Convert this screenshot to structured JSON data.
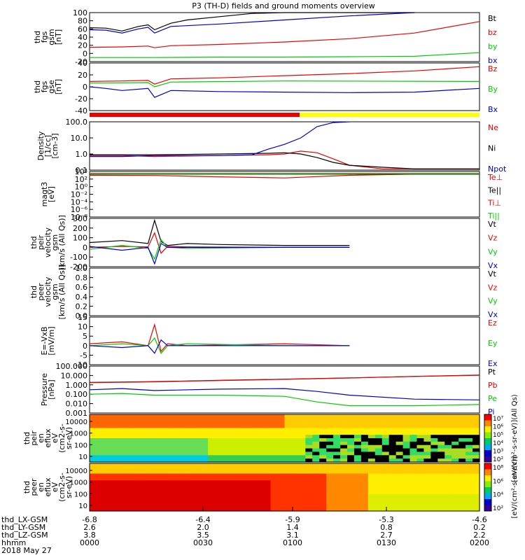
{
  "title": "P3 (TH-D) fields and ground moments overview",
  "date_label": "2018 May 27",
  "colors": {
    "black": "#000000",
    "red": "#ee0000",
    "green": "#00cc00",
    "blue": "#0000cc",
    "yellow": "#ffff00",
    "bar_red": "#ee0000"
  },
  "ephemeris": {
    "row_labels": [
      "thd_LX-GSM",
      "thd_LY-GSM",
      "thd_LZ-GSM",
      "hhmm"
    ],
    "x_ticks": [
      "-6.8",
      "-6.4",
      "-5.9",
      "-5.3",
      "-4.6"
    ],
    "columns": [
      [
        "2.6",
        "3.8",
        "0000"
      ],
      [
        "2.0",
        "3.5",
        "0030"
      ],
      [
        "1.4",
        "3.1",
        "0100"
      ],
      [
        "0.8",
        "2.7",
        "0130"
      ],
      [
        "0.2",
        "2.2",
        "0200"
      ]
    ]
  },
  "chart_data": [
    {
      "type": "line",
      "panel": "fgs_gsm",
      "ylabel": [
        "thd",
        "fgs",
        "gsm",
        "[nT]"
      ],
      "ylim": [
        -20,
        100
      ],
      "y_ticks": [
        "100",
        "80",
        "60",
        "40",
        "20",
        "0",
        "-20"
      ],
      "x_time": [
        "0000",
        "0030",
        "0100",
        "0130",
        "0200"
      ],
      "series": [
        {
          "name": "Bt",
          "color": "#000000",
          "x": [
            0,
            5,
            10,
            15,
            18,
            20,
            25,
            30,
            40,
            50,
            60,
            70,
            80,
            90,
            100
          ],
          "values": [
            63,
            62,
            55,
            66,
            70,
            58,
            74,
            82,
            90,
            98,
            102,
            105,
            108,
            110,
            112
          ]
        },
        {
          "name": "bz",
          "color": "#ee0000",
          "x": [
            0,
            10,
            18,
            20,
            25,
            40,
            60,
            80,
            100,
            120
          ],
          "values": [
            15,
            16,
            18,
            14,
            19,
            22,
            28,
            36,
            50,
            78
          ]
        },
        {
          "name": "by",
          "color": "#00cc00",
          "x": [
            0,
            20,
            40,
            60,
            80,
            100,
            120
          ],
          "values": [
            -10,
            -10,
            -9,
            -9,
            -8,
            -7,
            2
          ]
        },
        {
          "name": "bx",
          "color": "#0000cc",
          "x": [
            0,
            5,
            10,
            15,
            18,
            20,
            25,
            40,
            60,
            80,
            100
          ],
          "values": [
            58,
            57,
            50,
            60,
            64,
            50,
            66,
            72,
            82,
            92,
            100
          ]
        }
      ]
    },
    {
      "type": "line",
      "panel": "fgs_gse",
      "ylabel": [
        "thd",
        "fgs",
        "gse",
        "[nT]"
      ],
      "ylim": [
        -50,
        40
      ],
      "y_ticks": [
        "40",
        "20",
        "0",
        "-20",
        "-40"
      ],
      "series": [
        {
          "name": "Bz",
          "color": "#ee0000",
          "x": [
            0,
            10,
            18,
            20,
            25,
            40,
            60,
            80,
            100,
            120
          ],
          "values": [
            5,
            6,
            7,
            0,
            10,
            12,
            16,
            20,
            25,
            33
          ]
        },
        {
          "name": "By",
          "color": "#00cc00",
          "x": [
            0,
            18,
            20,
            25,
            60,
            120
          ],
          "values": [
            2,
            3,
            -5,
            4,
            6,
            5
          ]
        },
        {
          "name": "Bx",
          "color": "#0000cc",
          "x": [
            0,
            5,
            10,
            18,
            20,
            25,
            40,
            60,
            80,
            100,
            120
          ],
          "values": [
            -5,
            -8,
            -12,
            -8,
            -25,
            -12,
            -14,
            -15,
            -16,
            -15,
            -8
          ]
        }
      ]
    },
    {
      "type": "line",
      "panel": "density",
      "ylabel": [
        "Density",
        "[1/cc]",
        "[cm-3]"
      ],
      "ylim_log": [
        0.1,
        100
      ],
      "y_ticks": [
        "100.0",
        "10.0",
        "1.0",
        "0.1"
      ],
      "series": [
        {
          "name": "Ne",
          "color": "#ee0000",
          "x": [
            0,
            10,
            20,
            40,
            55,
            60,
            65,
            70,
            75,
            80,
            90,
            100,
            120
          ],
          "values": [
            0.8,
            0.8,
            0.7,
            0.8,
            0.9,
            1.0,
            1.5,
            1.2,
            0.5,
            0.2,
            0.12,
            0.12,
            0.12
          ]
        },
        {
          "name": "Ni",
          "color": "#000000",
          "x": [
            0,
            10,
            20,
            40,
            55,
            60,
            65,
            70,
            75,
            80,
            90,
            100,
            120
          ],
          "values": [
            0.9,
            0.9,
            0.9,
            1.0,
            1.1,
            1.2,
            1.0,
            0.6,
            0.3,
            0.2,
            0.15,
            0.12,
            0.12
          ]
        },
        {
          "name": "Npot",
          "color": "#0000cc",
          "x": [
            0,
            10,
            20,
            40,
            50,
            55,
            60,
            65,
            70,
            75,
            80
          ],
          "values": [
            0.7,
            0.7,
            0.8,
            0.8,
            0.9,
            2.0,
            4.0,
            10.0,
            50.0,
            90.0,
            120.0
          ]
        }
      ]
    },
    {
      "type": "line",
      "panel": "temperature",
      "ylabel": [
        "magt3",
        "[eV]"
      ],
      "ylim_log": [
        1e-08,
        10000.0
      ],
      "y_ticks": [
        "10⁴",
        "10²",
        "10⁰",
        "10⁻²",
        "10⁻⁴",
        "10⁻⁶",
        "10⁻⁸"
      ],
      "series": [
        {
          "name": "Te⊥",
          "color": "#ee0000",
          "x": [
            0,
            20,
            40,
            60,
            80,
            100,
            120
          ],
          "values": [
            1000,
            900,
            400,
            200,
            1000,
            2000,
            2000
          ]
        },
        {
          "name": "Te||",
          "color": "#000000",
          "x": [
            0,
            120
          ],
          "values": [
            2000,
            2000
          ]
        },
        {
          "name": "Ti⊥",
          "color": "#ee0000",
          "x": [
            0,
            120
          ],
          "values": [
            3000,
            3000
          ]
        },
        {
          "name": "Ti||",
          "color": "#00cc00",
          "x": [
            0,
            120
          ],
          "values": [
            2500,
            2500
          ]
        }
      ]
    },
    {
      "type": "line",
      "panel": "peir_velocity",
      "ylabel": [
        "thd",
        "peir",
        "velocity",
        "gsm",
        "[km/s (All Qs)]"
      ],
      "ylim": [
        -200,
        300
      ],
      "y_ticks": [
        "300",
        "200",
        "100",
        "0",
        "-100",
        "-200"
      ],
      "series": [
        {
          "name": "Vt",
          "color": "#000000",
          "x": [
            0,
            10,
            18,
            20,
            22,
            24,
            30,
            40,
            60,
            80
          ],
          "values": [
            50,
            70,
            40,
            280,
            60,
            20,
            40,
            30,
            20,
            20
          ]
        },
        {
          "name": "Vz",
          "color": "#ee0000",
          "x": [
            0,
            10,
            18,
            20,
            22,
            24,
            30,
            60,
            80
          ],
          "values": [
            0,
            10,
            5,
            150,
            -60,
            10,
            5,
            0,
            0
          ]
        },
        {
          "name": "Vy",
          "color": "#00cc00",
          "x": [
            0,
            10,
            18,
            20,
            22,
            24,
            30,
            60,
            80
          ],
          "values": [
            -20,
            20,
            -10,
            -120,
            80,
            0,
            -10,
            0,
            0
          ]
        },
        {
          "name": "Vx",
          "color": "#0000cc",
          "x": [
            0,
            10,
            18,
            20,
            22,
            24,
            30,
            60,
            80
          ],
          "values": [
            10,
            -30,
            0,
            -170,
            40,
            0,
            0,
            0,
            0
          ]
        }
      ]
    },
    {
      "type": "line",
      "panel": "peer_velocity",
      "ylabel": [
        "thd",
        "peer",
        "velocity",
        "gsm",
        "[km/s (All Qs)]"
      ],
      "ylim": [
        0,
        1
      ],
      "y_ticks": [
        "1.0",
        "0.8",
        "0.6",
        "0.4",
        "0.2",
        "0.0"
      ],
      "series": [
        {
          "name": "Vt",
          "color": "#000000",
          "x": [],
          "values": []
        },
        {
          "name": "Vz",
          "color": "#ee0000",
          "x": [],
          "values": []
        },
        {
          "name": "Vy",
          "color": "#00cc00",
          "x": [],
          "values": []
        },
        {
          "name": "Vx",
          "color": "#0000cc",
          "x": [],
          "values": []
        }
      ]
    },
    {
      "type": "line",
      "panel": "efield",
      "ylabel": [
        "E=-VxB",
        "[mV/m]"
      ],
      "ylim": [
        -10,
        15
      ],
      "y_ticks": [
        "15",
        "10",
        "5",
        "0",
        "-5",
        "-10"
      ],
      "series": [
        {
          "name": "Ez",
          "color": "#ee0000",
          "x": [
            0,
            10,
            18,
            20,
            22,
            24,
            30,
            60,
            80
          ],
          "values": [
            1,
            2,
            0,
            11,
            -3,
            1,
            0,
            1,
            0
          ]
        },
        {
          "name": "Ey",
          "color": "#00cc00",
          "x": [
            0,
            10,
            18,
            20,
            22,
            24,
            30,
            60,
            80
          ],
          "values": [
            0,
            1,
            0,
            4,
            -4,
            0,
            1,
            0,
            0
          ]
        },
        {
          "name": "Ex",
          "color": "#0000cc",
          "x": [
            0,
            10,
            18,
            20,
            22,
            24,
            30,
            60,
            80
          ],
          "values": [
            0,
            -1,
            0,
            -4,
            3,
            0,
            0,
            0,
            0
          ]
        }
      ]
    },
    {
      "type": "line",
      "panel": "pressure",
      "ylabel": [
        "Pressure",
        "[nPa]"
      ],
      "ylim_log": [
        0.001,
        100
      ],
      "y_ticks": [
        "100.000",
        "10.000",
        "1.000",
        "0.100",
        "0.010",
        "0.001"
      ],
      "series": [
        {
          "name": "Pt",
          "color": "#000000",
          "x": [
            0,
            20,
            40,
            60,
            80,
            100,
            120
          ],
          "values": [
            1.8,
            2.2,
            3.0,
            4.0,
            5.5,
            8.0,
            11.0
          ]
        },
        {
          "name": "Pb",
          "color": "#ee0000",
          "x": [
            0,
            20,
            40,
            60,
            80,
            100,
            120
          ],
          "values": [
            1.7,
            2.1,
            2.9,
            3.9,
            5.4,
            7.8,
            10.5
          ]
        },
        {
          "name": "Pe",
          "color": "#00cc00",
          "x": [
            0,
            10,
            20,
            40,
            60,
            70,
            80,
            100,
            120
          ],
          "values": [
            0.1,
            0.12,
            0.08,
            0.08,
            0.06,
            0.015,
            0.006,
            0.006,
            0.008
          ]
        },
        {
          "name": "Pi",
          "color": "#0000cc",
          "x": [
            0,
            10,
            20,
            40,
            60,
            70,
            80,
            100,
            120
          ],
          "values": [
            0.3,
            0.4,
            0.25,
            0.35,
            0.4,
            0.2,
            0.08,
            0.03,
            0.025
          ]
        }
      ]
    },
    {
      "type": "heatmap",
      "panel": "peir_en_eflux",
      "ylabel": [
        "thd",
        "peir",
        "en",
        "eflux",
        "eV",
        "(cm2-s-",
        "sr-eV)"
      ],
      "y_ticks": [
        "10000",
        "1000",
        "100",
        "10"
      ],
      "colorbar_ticks": [
        "10⁷",
        "10⁶",
        "10⁵",
        "10⁴",
        "10³",
        "10²"
      ],
      "colorbar_label": "[eV/(cm²-s-sr-eV)](All Qs)"
    },
    {
      "type": "heatmap",
      "panel": "peer_en_eflux",
      "ylabel": [
        "thd",
        "peer",
        "en",
        "eflux",
        "eV",
        "(cm2-s-",
        "sr-eV)"
      ],
      "y_ticks": [
        "10000",
        "1000",
        "100",
        "10"
      ],
      "colorbar_ticks": [
        "10⁸",
        "10⁶",
        "10⁴",
        "10²"
      ],
      "colorbar_label": "[eV/(cm²-s-sr-eV)]"
    }
  ]
}
